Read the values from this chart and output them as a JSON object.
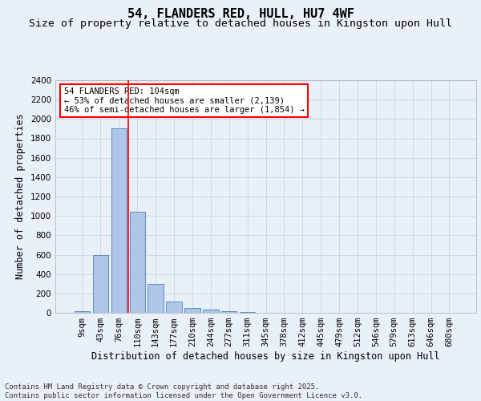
{
  "title_line1": "54, FLANDERS RED, HULL, HU7 4WF",
  "title_line2": "Size of property relative to detached houses in Kingston upon Hull",
  "xlabel": "Distribution of detached houses by size in Kingston upon Hull",
  "ylabel": "Number of detached properties",
  "categories": [
    "9sqm",
    "43sqm",
    "76sqm",
    "110sqm",
    "143sqm",
    "177sqm",
    "210sqm",
    "244sqm",
    "277sqm",
    "311sqm",
    "345sqm",
    "378sqm",
    "412sqm",
    "445sqm",
    "479sqm",
    "512sqm",
    "546sqm",
    "579sqm",
    "613sqm",
    "646sqm",
    "680sqm"
  ],
  "values": [
    15,
    600,
    1900,
    1040,
    295,
    115,
    48,
    30,
    18,
    5,
    0,
    0,
    0,
    0,
    0,
    0,
    0,
    0,
    0,
    0,
    0
  ],
  "bar_color": "#aec6e8",
  "bar_edge_color": "#5a8fc2",
  "grid_color": "#d0d8e8",
  "background_color": "#eaf0f8",
  "axes_bg_color": "#eaf0f8",
  "vline_color": "red",
  "vline_x_idx": 2.5,
  "annotation_text": "54 FLANDERS RED: 104sqm\n← 53% of detached houses are smaller (2,139)\n46% of semi-detached houses are larger (1,854) →",
  "annotation_box_color": "red",
  "ylim": [
    0,
    2400
  ],
  "yticks": [
    0,
    200,
    400,
    600,
    800,
    1000,
    1200,
    1400,
    1600,
    1800,
    2000,
    2200,
    2400
  ],
  "footnote": "Contains HM Land Registry data © Crown copyright and database right 2025.\nContains public sector information licensed under the Open Government Licence v3.0.",
  "title_fontsize": 11,
  "subtitle_fontsize": 9.5,
  "label_fontsize": 8.5,
  "tick_fontsize": 7.5,
  "annotation_fontsize": 7.5,
  "footnote_fontsize": 6.5
}
